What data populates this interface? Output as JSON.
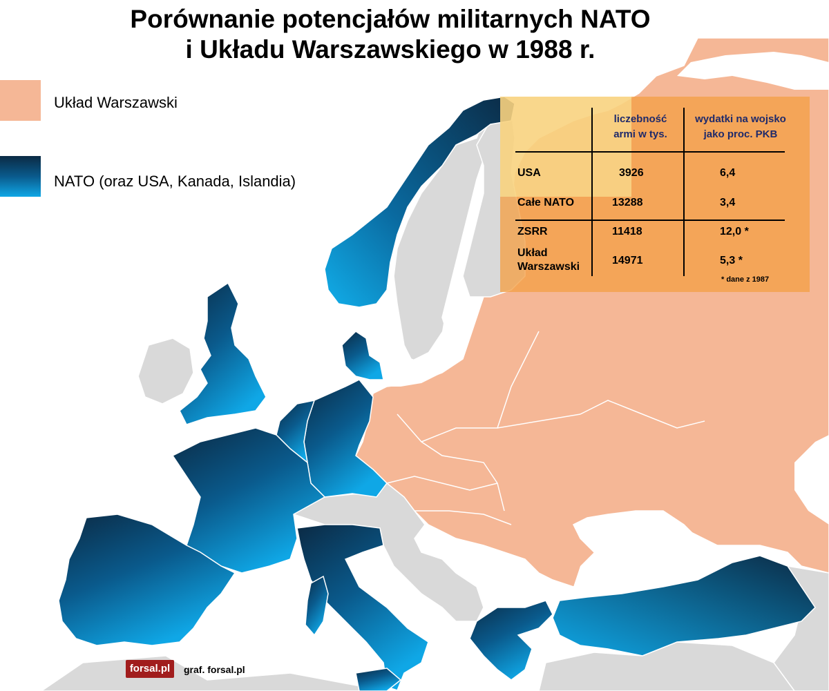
{
  "title": {
    "line1": "Porównanie potencjałów militarnych NATO",
    "line2": "i Układu Warszawskiego w 1988 r."
  },
  "legend": {
    "warsaw_pact": {
      "label": "Układ Warszawski",
      "color": "#f5b796"
    },
    "nato": {
      "label": "NATO (oraz USA, Kanada, Islandia)",
      "color_dark": "#0b2a44",
      "color_light": "#0fa7e6"
    }
  },
  "colors": {
    "neutral": "#d9d9d9",
    "sea": "#ffffff",
    "panel": "#f3a046",
    "highlight": "#fbf3a4",
    "border": "#ffffff"
  },
  "table": {
    "col_headers": [
      "liczebność armi w tys.",
      "wydatki na wojsko jako proc. PKB"
    ],
    "rows": [
      {
        "label": "USA",
        "army": "3926",
        "spending": "6,4"
      },
      {
        "label": "Całe NATO",
        "army": "13288",
        "spending": "3,4"
      },
      {
        "label": "ZSRR",
        "army": "11418",
        "spending": "12,0 *"
      },
      {
        "label": "Układ Warszawski",
        "army": "14971",
        "spending": "5,3 *"
      }
    ],
    "footnote": "* dane z 1987"
  },
  "branding": {
    "logo_text": "forsal.pl",
    "credit": "graf.  forsal.pl"
  }
}
